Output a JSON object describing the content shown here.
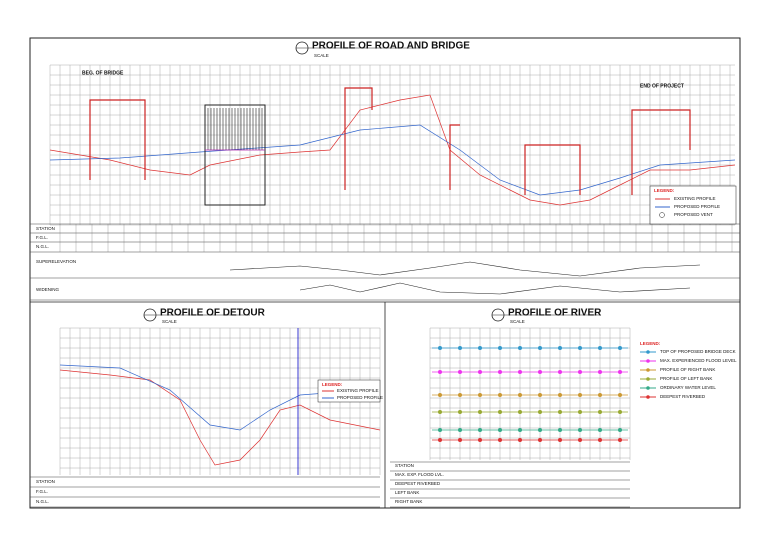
{
  "road": {
    "title": "PROFILE OF ROAD AND BRIDGE",
    "scale": "SCALE",
    "notes": [
      "BEG. OF BRIDGE",
      "END OF PROJECT"
    ],
    "rows": [
      "STATION",
      "F.G.L.",
      "N.G.L.",
      "SUPERELEVATION",
      "WIDENING"
    ],
    "legend": {
      "title": "LEGEND:",
      "items": [
        "EXISTING PROFILE",
        "PROPOSED PROFILE",
        "PROPOSED VENT"
      ]
    }
  },
  "detour": {
    "title": "PROFILE OF DETOUR",
    "scale": "SCALE",
    "rows": [
      "STATION",
      "F.G.L.",
      "N.G.L."
    ],
    "legend": {
      "title": "LEGEND:",
      "items": [
        "EXISTING PROFILE",
        "PROPOSED PROFILE"
      ]
    }
  },
  "river": {
    "title": "PROFILE OF RIVER",
    "scale": "SCALE",
    "rows": [
      "STATION",
      "MAX. EXP. FLOOD LVL.",
      "DEEPEST RIVERBED",
      "LEFT BANK",
      "RIGHT BANK"
    ],
    "legend": {
      "title": "LEGEND:",
      "items": [
        "TOP OF PROPOSED BRIDGE DECK",
        "MAX. EXPERIENCED FLOOD LEVEL",
        "PROFILE OF RIGHT BANK",
        "PROFILE OF LEFT BANK",
        "ORDINARY WATER LEVEL",
        "DEEPEST RIVERBED"
      ]
    }
  }
}
